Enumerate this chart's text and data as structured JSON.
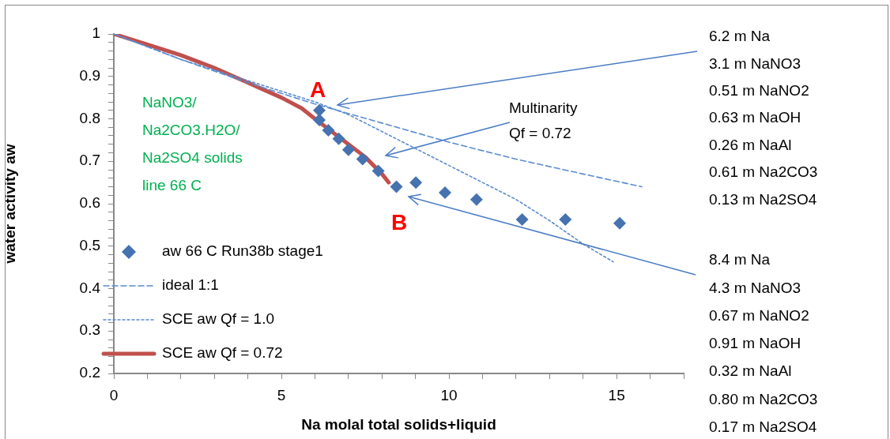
{
  "chart_data": {
    "type": "line",
    "xlabel": "Na molal total solids+liquid",
    "ylabel": "water activity aw",
    "xlim": [
      0,
      17
    ],
    "xticks": [
      0,
      {
        "value": 1,
        "label": null
      },
      {
        "value": 2,
        "label": null
      },
      {
        "value": 3,
        "label": null
      },
      {
        "value": 4,
        "label": null
      },
      5,
      {
        "value": 6,
        "label": null
      },
      {
        "value": 7,
        "label": null
      },
      {
        "value": 8,
        "label": null
      },
      {
        "value": 9,
        "label": null
      },
      10,
      {
        "value": 11,
        "label": null
      },
      {
        "value": 12,
        "label": null
      },
      {
        "value": 13,
        "label": null
      },
      {
        "value": 14,
        "label": null
      },
      15,
      {
        "value": 16,
        "label": null
      },
      {
        "value": 17,
        "label": null
      }
    ],
    "ylim": [
      0.2,
      1
    ],
    "yticks": [
      0.2,
      {
        "value": 0.22,
        "label": null
      },
      {
        "value": 0.24,
        "label": null
      },
      {
        "value": 0.26,
        "label": null
      },
      {
        "value": 0.28,
        "label": null
      },
      0.3,
      {
        "value": 0.32,
        "label": null
      },
      {
        "value": 0.34,
        "label": null
      },
      {
        "value": 0.36,
        "label": null
      },
      {
        "value": 0.38,
        "label": null
      },
      0.4,
      {
        "value": 0.42,
        "label": null
      },
      {
        "value": 0.44,
        "label": null
      },
      {
        "value": 0.46,
        "label": null
      },
      {
        "value": 0.48,
        "label": null
      },
      0.5,
      {
        "value": 0.52,
        "label": null
      },
      {
        "value": 0.54,
        "label": null
      },
      {
        "value": 0.56,
        "label": null
      },
      {
        "value": 0.58,
        "label": null
      },
      0.6,
      {
        "value": 0.62,
        "label": null
      },
      {
        "value": 0.64,
        "label": null
      },
      {
        "value": 0.66,
        "label": null
      },
      {
        "value": 0.68,
        "label": null
      },
      0.7,
      {
        "value": 0.72,
        "label": null
      },
      {
        "value": 0.74,
        "label": null
      },
      {
        "value": 0.76,
        "label": null
      },
      {
        "value": 0.78,
        "label": null
      },
      0.8,
      {
        "value": 0.82,
        "label": null
      },
      {
        "value": 0.84,
        "label": null
      },
      {
        "value": 0.86,
        "label": null
      },
      {
        "value": 0.88,
        "label": null
      },
      0.9,
      {
        "value": 0.92,
        "label": null
      },
      {
        "value": 0.94,
        "label": null
      },
      {
        "value": 0.96,
        "label": null
      },
      {
        "value": 0.98,
        "label": null
      },
      1
    ],
    "grid": false,
    "legend": "bottom left",
    "series": [
      {
        "name": "aw 66 C Run38b stage1",
        "type": "scatter",
        "marker": "diamond",
        "color": "#4672b0",
        "x": [
          6.13,
          6.13,
          6.4,
          6.71,
          7.0,
          7.42,
          7.89,
          8.43,
          9.01,
          9.88,
          10.82,
          12.18,
          13.47,
          15.09
        ],
        "values": [
          0.82,
          0.797,
          0.773,
          0.753,
          0.727,
          0.705,
          0.677,
          0.64,
          0.65,
          0.626,
          0.61,
          0.563,
          0.563,
          0.554
        ]
      },
      {
        "name": "ideal 1:1",
        "type": "line",
        "marker": "none",
        "line_style": "dashed",
        "color": "#5b8bd0",
        "x": [
          0,
          2,
          4,
          6,
          8,
          10,
          12,
          14,
          15.75
        ],
        "values": [
          1,
          0.94,
          0.885,
          0.835,
          0.79,
          0.745,
          0.705,
          0.67,
          0.64
        ]
      },
      {
        "name": "SCE aw Qf = 1.0",
        "type": "line",
        "marker": "none",
        "line_style": "dotted",
        "color": "#5b8bd0",
        "x": [
          0,
          2,
          4,
          6,
          7,
          8,
          9,
          10,
          11,
          12,
          13,
          14,
          14.9
        ],
        "values": [
          1,
          0.94,
          0.89,
          0.84,
          0.81,
          0.77,
          0.73,
          0.69,
          0.65,
          0.61,
          0.56,
          0.505,
          0.463
        ]
      },
      {
        "name": "SCE aw Qf = 0.72",
        "type": "line",
        "marker": "none",
        "line_style": "solid",
        "color": "#c0504d",
        "x": [
          0,
          1,
          2,
          3,
          4,
          5,
          5.6,
          6,
          6.5,
          7,
          7.5,
          8,
          8.2
        ],
        "values": [
          1,
          0.975,
          0.95,
          0.92,
          0.885,
          0.85,
          0.825,
          0.8,
          0.77,
          0.74,
          0.71,
          0.67,
          0.65
        ]
      }
    ],
    "annotations": [
      "NaNO3/\nNa2CO3.H2O/\nNa2SO4 solids\nline 66 C",
      "6.2 m Na\n3.1 m NaNO3\n0.51 m NaNO2\n0.63 m NaOH\n0.26 m NaAl\n0.61 m Na2CO3\n0.13 m Na2SO4",
      "8.4 m Na\n4.3 m NaNO3\n0.67 m NaNO2\n0.91 m NaOH\n0.32 m NaAl\n0.80 m Na2CO3\n0.17 m Na2SO4",
      "Multinarity\nQf = 0.72",
      "A",
      "B"
    ]
  }
}
